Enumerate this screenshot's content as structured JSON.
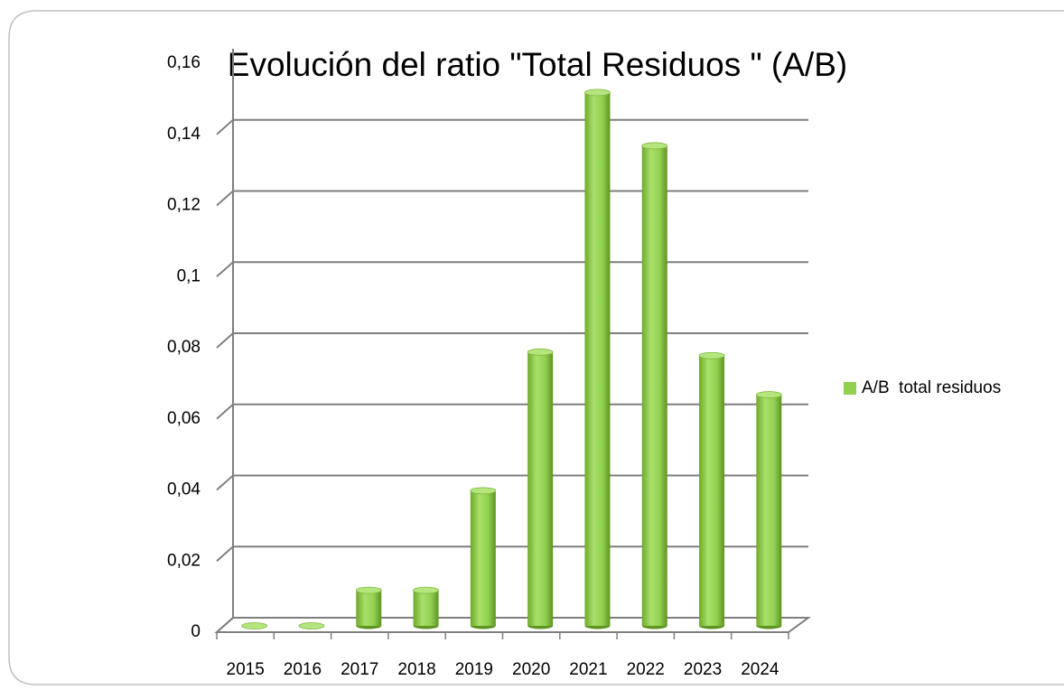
{
  "chart_data": {
    "type": "bar",
    "title": "Evolución del ratio \"Total Residuos \" (A/B)",
    "categories": [
      "2015",
      "2016",
      "2017",
      "2018",
      "2019",
      "2020",
      "2021",
      "2022",
      "2023",
      "2024"
    ],
    "series": [
      {
        "name": "A/B  total residuos",
        "color": "#92d050",
        "values": [
          0,
          0,
          0.01,
          0.01,
          0.038,
          0.077,
          0.15,
          0.135,
          0.076,
          0.065
        ]
      }
    ],
    "ylim": [
      0,
      0.16
    ],
    "yticks": [
      0,
      {
        "value": 0.02,
        "label": "0,02"
      },
      {
        "value": 0.04,
        "label": "0,04"
      },
      {
        "value": 0.06,
        "label": "0,06"
      },
      {
        "value": 0.08,
        "label": "0,08"
      },
      {
        "value": 0.1,
        "label": "0,1"
      },
      {
        "value": 0.12,
        "label": "0,12"
      },
      {
        "value": 0.14,
        "label": "0,14"
      },
      {
        "value": 0.16,
        "label": "0,16"
      }
    ],
    "grid": true,
    "legend": "right"
  }
}
